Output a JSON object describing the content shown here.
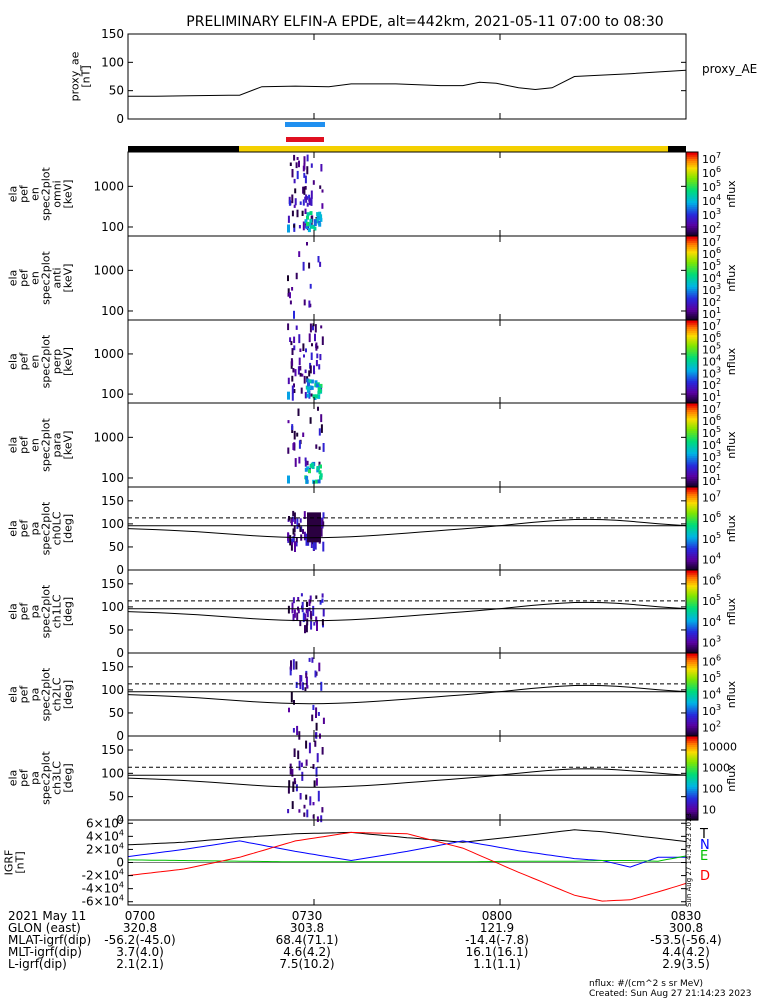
{
  "title": "PRELIMINARY ELFIN-A EPDE, alt=442km, 2021-05-11 07:00 to 08:30",
  "legend_proxy": "proxy_AE",
  "chart_data": [
    {
      "type": "line",
      "id": "proxy_ae",
      "ylabel": [
        "proxy_ae",
        "[nT]"
      ],
      "ylim": [
        0,
        150
      ],
      "yticks": [
        "0",
        "50",
        "100",
        "150"
      ],
      "x": [
        0,
        0.05,
        0.11,
        0.18,
        0.2,
        0.24,
        0.3,
        0.36,
        0.4,
        0.48,
        0.56,
        0.6,
        0.63,
        0.66,
        0.7,
        0.73,
        0.76,
        0.8,
        0.84,
        0.9,
        1.0
      ],
      "values": [
        40,
        40,
        41,
        42,
        42,
        57,
        58,
        57,
        62,
        62,
        59,
        59,
        65,
        63,
        55,
        52,
        55,
        75,
        77,
        80,
        86
      ]
    },
    {
      "type": "heatmap",
      "id": "en_omni",
      "ylabel": [
        "ela",
        "pef",
        "en",
        "spec2plot",
        "omni",
        "[keV]"
      ],
      "ylog": true,
      "yticks": [
        "100",
        "1000"
      ],
      "colorbar": {
        "label": "nflux",
        "ticks": [
          "10^2",
          "10^3",
          "10^4",
          "10^5",
          "10^6",
          "10^7"
        ],
        "range": [
          100,
          10000000
        ]
      }
    },
    {
      "type": "heatmap",
      "id": "en_anti",
      "ylabel": [
        "ela",
        "pef",
        "en",
        "spec2plot",
        "anti",
        "[keV]"
      ],
      "ylog": true,
      "yticks": [
        "100",
        "1000"
      ],
      "colorbar": {
        "label": "nflux",
        "ticks": [
          "10^1",
          "10^2",
          "10^3",
          "10^4",
          "10^5",
          "10^6",
          "10^7"
        ],
        "range": [
          10,
          10000000
        ]
      }
    },
    {
      "type": "heatmap",
      "id": "en_perp",
      "ylabel": [
        "ela",
        "pef",
        "en",
        "spec2plot",
        "perp",
        "[keV]"
      ],
      "ylog": true,
      "yticks": [
        "100",
        "1000"
      ],
      "colorbar": {
        "label": "nflux",
        "ticks": [
          "10^1",
          "10^2",
          "10^3",
          "10^4",
          "10^5",
          "10^6",
          "10^7"
        ],
        "range": [
          10,
          10000000
        ]
      }
    },
    {
      "type": "heatmap",
      "id": "en_para",
      "ylabel": [
        "ela",
        "pef",
        "en",
        "spec2plot",
        "para",
        "[keV]"
      ],
      "ylog": true,
      "yticks": [
        "100",
        "1000"
      ],
      "colorbar": {
        "label": "nflux",
        "ticks": [
          "10^1",
          "10^2",
          "10^3",
          "10^4",
          "10^5",
          "10^6",
          "10^7"
        ],
        "range": [
          10,
          10000000
        ]
      }
    },
    {
      "type": "heatmap",
      "id": "pa_ch0",
      "ylabel": [
        "ela",
        "pef",
        "pa",
        "spec2plot",
        "ch0LC",
        "[deg]"
      ],
      "ylim": [
        0,
        180
      ],
      "yticks": [
        "0",
        "50",
        "100",
        "150"
      ],
      "colorbar": {
        "label": "nflux",
        "ticks": [
          "10^4",
          "10^5",
          "10^6",
          "10^7"
        ],
        "range": [
          1000,
          10000000
        ]
      }
    },
    {
      "type": "heatmap",
      "id": "pa_ch1",
      "ylabel": [
        "ela",
        "pef",
        "pa",
        "spec2plot",
        "ch1LC",
        "[deg]"
      ],
      "ylim": [
        0,
        180
      ],
      "yticks": [
        "0",
        "50",
        "100",
        "150"
      ],
      "colorbar": {
        "label": "nflux",
        "ticks": [
          "10^3",
          "10^4",
          "10^5",
          "10^6"
        ],
        "range": [
          500,
          3000000
        ]
      }
    },
    {
      "type": "heatmap",
      "id": "pa_ch2",
      "ylabel": [
        "ela",
        "pef",
        "pa",
        "spec2plot",
        "ch2LC",
        "[deg]"
      ],
      "ylim": [
        0,
        180
      ],
      "yticks": [
        "0",
        "50",
        "100",
        "150"
      ],
      "colorbar": {
        "label": "nflux",
        "ticks": [
          "10^2",
          "10^3",
          "10^4",
          "10^5",
          "10^6"
        ],
        "range": [
          60,
          2000000
        ]
      }
    },
    {
      "type": "heatmap",
      "id": "pa_ch3",
      "ylabel": [
        "ela",
        "pef",
        "pa",
        "spec2plot",
        "ch3LC",
        "[deg]"
      ],
      "ylim": [
        0,
        180
      ],
      "yticks": [
        "0",
        "50",
        "100",
        "150"
      ],
      "colorbar": {
        "label": "nflux",
        "ticks": [
          "10",
          "100",
          "1000",
          "10000"
        ],
        "range": [
          10,
          20000
        ]
      }
    },
    {
      "type": "line",
      "id": "igrf",
      "ylabel": [
        "IGRF",
        "[nT]"
      ],
      "ylim": [
        -65000,
        65000
      ],
      "yticks": [
        "-6x10^4",
        "-4x10^4",
        "-2x10^4",
        "0",
        "2x10^4",
        "4x10^4",
        "6x10^4"
      ],
      "legend": [
        "T",
        "N",
        "E",
        "D"
      ],
      "x": [
        0,
        0.1,
        0.2,
        0.3,
        0.4,
        0.5,
        0.6,
        0.7,
        0.8,
        0.85,
        0.9,
        0.95,
        1.0
      ],
      "series": [
        {
          "name": "T",
          "color": "#000000",
          "values": [
            27000,
            31000,
            38000,
            44000,
            46000,
            38000,
            31000,
            40000,
            50000,
            47000,
            42000,
            37000,
            32000
          ]
        },
        {
          "name": "N",
          "color": "#0000ff",
          "values": [
            9000,
            20000,
            33000,
            17000,
            3000,
            17000,
            33000,
            18000,
            6000,
            3000,
            -7000,
            8000,
            8000
          ]
        },
        {
          "name": "E",
          "color": "#00c000",
          "values": [
            4000,
            3000,
            2000,
            1000,
            1000,
            1000,
            1000,
            2000,
            2000,
            3000,
            3000,
            2000,
            10000
          ]
        },
        {
          "name": "D",
          "color": "#ff0000",
          "values": [
            -20000,
            -10000,
            8000,
            33000,
            46000,
            44000,
            22000,
            -15000,
            -50000,
            -59000,
            -57000,
            -45000,
            -32000
          ]
        }
      ],
      "side_label": "Sun Aug 27 14:14:23 2023"
    }
  ],
  "footer": {
    "rows": [
      [
        "2021 May 11",
        "0700",
        "0730",
        "0800",
        "0830"
      ],
      [
        "GLON (east)",
        "320.8",
        "303.8",
        "121.9",
        "300.8"
      ],
      [
        "MLAT-igrf(dip)",
        "-56.2(-45.0)",
        "68.4(71.1)",
        "-14.4(-7.8)",
        "-53.5(-56.4)"
      ],
      [
        "MLT-igrf(dip)",
        "3.7(4.0)",
        "4.6(4.2)",
        "16.1(16.1)",
        "4.4(4.2)"
      ],
      [
        "L-igrf(dip)",
        "2.1(2.1)",
        "7.5(10.2)",
        "1.1(1.1)",
        "2.9(3.5)"
      ]
    ],
    "units_note": "nflux: #/(cm^2 s sr MeV)",
    "created": "Created: Sun Aug 27 21:14:23 2023"
  }
}
